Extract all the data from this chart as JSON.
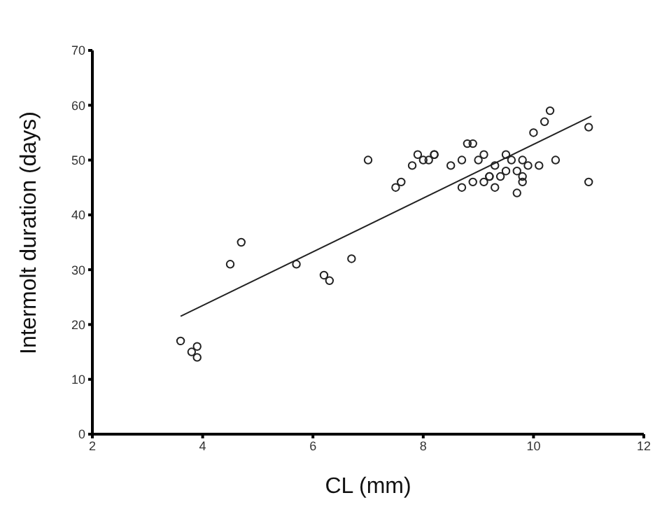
{
  "chart_data": {
    "type": "scatter",
    "xlabel": "CL (mm)",
    "ylabel": "Intermolt duration (days)",
    "xlim": [
      2,
      12
    ],
    "xticks": [
      2,
      4,
      6,
      8,
      10,
      12
    ],
    "ylim": [
      0,
      70
    ],
    "yticks": [
      0,
      10,
      20,
      30,
      40,
      50,
      60,
      70
    ],
    "grid": false,
    "legend": false,
    "marker": "circle",
    "series": [
      {
        "color": "#222222",
        "x": [
          3.6,
          3.8,
          3.9,
          3.9,
          4.5,
          4.7,
          5.7,
          6.2,
          6.3,
          6.7,
          7.0,
          7.5,
          7.6,
          7.8,
          7.9,
          8.0,
          8.1,
          8.2,
          8.2,
          8.5,
          8.7,
          8.7,
          8.8,
          8.9,
          8.9,
          9.0,
          9.1,
          9.1,
          9.2,
          9.2,
          9.3,
          9.3,
          9.4,
          9.5,
          9.5,
          9.6,
          9.7,
          9.7,
          9.8,
          9.8,
          9.8,
          9.9,
          10.0,
          10.1,
          10.2,
          10.3,
          10.4,
          11.0,
          11.0
        ],
        "values": [
          17,
          15,
          16,
          14,
          31,
          35,
          31,
          29,
          28,
          32,
          50,
          45,
          46,
          49,
          51,
          50,
          50,
          51,
          51,
          49,
          50,
          45,
          53,
          53,
          46,
          50,
          51,
          46,
          47,
          47,
          49,
          45,
          47,
          51,
          48,
          50,
          44,
          48,
          46,
          47,
          50,
          49,
          55,
          49,
          57,
          59,
          50,
          46,
          56
        ]
      },
      {
        "type": "line",
        "marker": "none",
        "color": "#222222",
        "x": [
          3.6,
          11.05
        ],
        "values": [
          21.5,
          58
        ]
      }
    ]
  }
}
